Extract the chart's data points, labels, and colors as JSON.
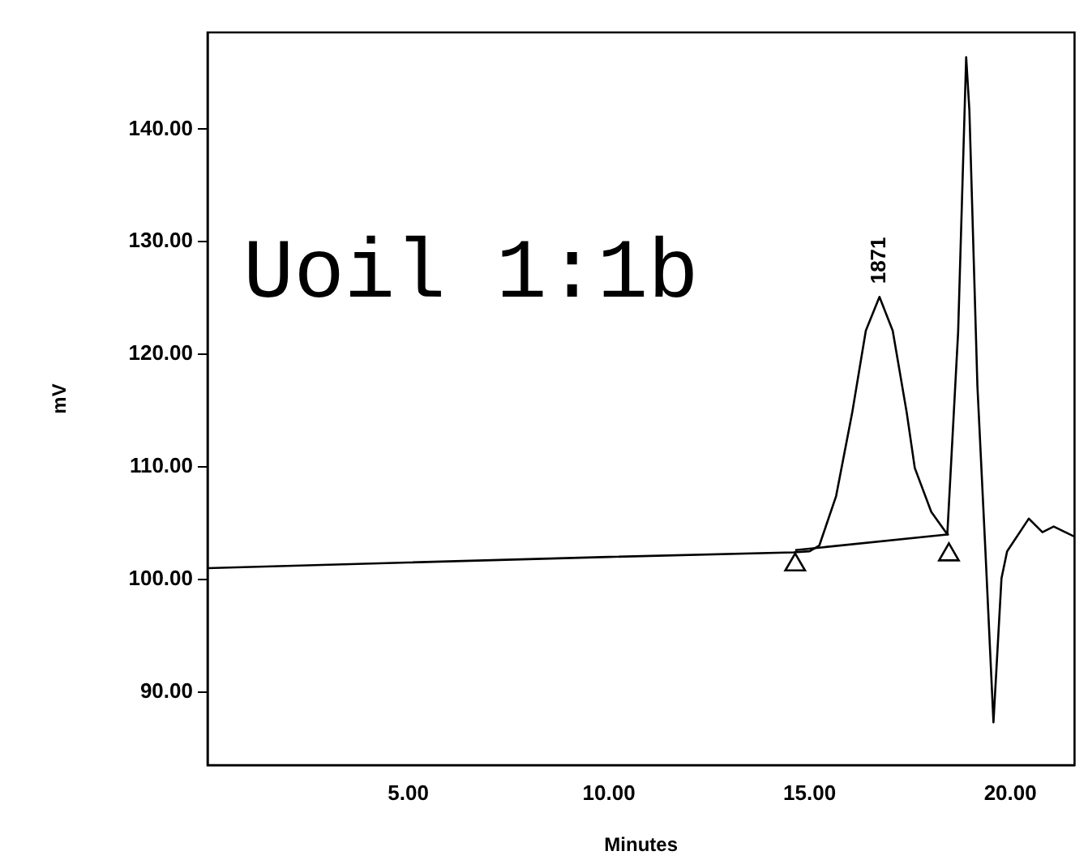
{
  "chart_data": {
    "type": "line",
    "xlabel": "Minutes",
    "ylabel": "mV",
    "xlim": [
      0,
      21.6
    ],
    "ylim": [
      83.5,
      148.6
    ],
    "xticks": [
      {
        "value": 5,
        "label": "5.00"
      },
      {
        "value": 10,
        "label": "10.00"
      },
      {
        "value": 15,
        "label": "15.00"
      },
      {
        "value": 20,
        "label": "20.00"
      }
    ],
    "yticks": [
      {
        "value": 90,
        "label": "90.00"
      },
      {
        "value": 100,
        "label": "100.00"
      },
      {
        "value": 110,
        "label": "110.00"
      },
      {
        "value": 120,
        "label": "120.00"
      },
      {
        "value": 130,
        "label": "130.00"
      },
      {
        "value": 140,
        "label": "140.00"
      }
    ],
    "grid": false,
    "legend": false,
    "marker": "none",
    "line_style": "solid",
    "annotations": [
      "Uoil 1:1b",
      {
        "text": "1871",
        "x": 16.74,
        "y": 125.1
      }
    ],
    "series": [
      {
        "color": "#000000",
        "x": [
          0,
          5,
          10,
          14.6,
          15.0,
          15.24,
          15.66,
          16.06,
          16.4,
          16.74,
          17.07,
          17.42,
          17.62,
          18.03,
          18.43,
          18.7,
          18.9,
          18.98,
          19.18,
          19.38,
          19.58,
          19.78,
          19.92,
          20.46,
          20.8,
          21.08,
          21.6
        ],
        "values": [
          101.0,
          101.5,
          102.0,
          102.4,
          102.5,
          103.0,
          107.4,
          114.8,
          122.1,
          125.1,
          122.1,
          114.8,
          109.9,
          106.0,
          104.0,
          122.0,
          146.4,
          141.7,
          117.2,
          102.5,
          87.3,
          100.1,
          102.5,
          105.4,
          104.2,
          104.7,
          103.8
        ]
      },
      {
        "color": "#000000",
        "x": [
          14.64,
          18.47
        ],
        "values": [
          102.6,
          104.0
        ]
      },
      {
        "type": "scatter",
        "marker": "triangle",
        "color": "#000000",
        "x": [
          14.64,
          18.47
        ],
        "values": [
          101.3,
          102.2
        ]
      }
    ]
  }
}
